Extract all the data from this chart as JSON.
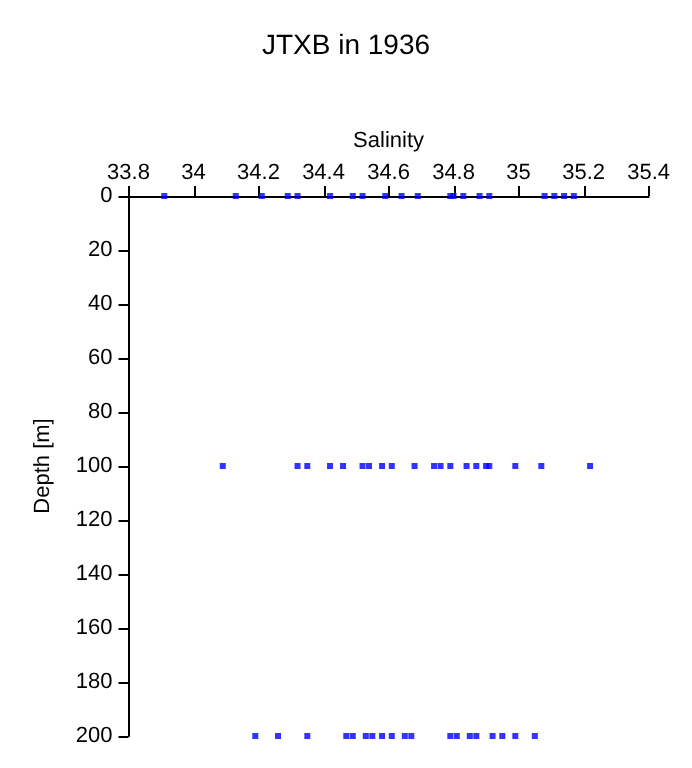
{
  "chart_data": {
    "type": "scatter",
    "title": "JTXB in 1936",
    "xlabel": "Salinity",
    "ylabel": "Depth [m]",
    "x": [
      33.91,
      34.13,
      34.21,
      34.29,
      34.32,
      34.42,
      34.49,
      34.52,
      34.59,
      34.64,
      34.69,
      34.79,
      34.8,
      34.83,
      34.88,
      34.91,
      35.08,
      35.11,
      35.14,
      35.17,
      34.09,
      34.32,
      34.35,
      34.42,
      34.46,
      34.52,
      34.54,
      34.58,
      34.61,
      34.68,
      34.74,
      34.76,
      34.79,
      34.84,
      34.87,
      34.9,
      34.91,
      34.99,
      35.07,
      35.22,
      34.19,
      34.26,
      34.35,
      34.47,
      34.49,
      34.53,
      34.55,
      34.58,
      34.61,
      34.65,
      34.67,
      34.79,
      34.81,
      34.85,
      34.87,
      34.92,
      34.95,
      34.99,
      35.05
    ],
    "values": [
      0,
      0,
      0,
      0,
      0,
      0,
      0,
      0,
      0,
      0,
      0,
      0,
      0,
      0,
      0,
      0,
      0,
      0,
      0,
      0,
      100,
      100,
      100,
      100,
      100,
      100,
      100,
      100,
      100,
      100,
      100,
      100,
      100,
      100,
      100,
      100,
      100,
      100,
      100,
      100,
      200,
      200,
      200,
      200,
      200,
      200,
      200,
      200,
      200,
      200,
      200,
      200,
      200,
      200,
      200,
      200,
      200,
      200,
      200
    ],
    "color": "#0000ff",
    "marker": "square",
    "xlim": [
      33.8,
      35.4
    ],
    "xticks": [
      33.8,
      34,
      34.2,
      34.4,
      34.6,
      34.8,
      35,
      35.2,
      35.4
    ],
    "ylim": [
      200,
      0
    ],
    "yticks": [
      0,
      20,
      40,
      60,
      80,
      100,
      120,
      140,
      160,
      180,
      200
    ],
    "grid": false
  }
}
